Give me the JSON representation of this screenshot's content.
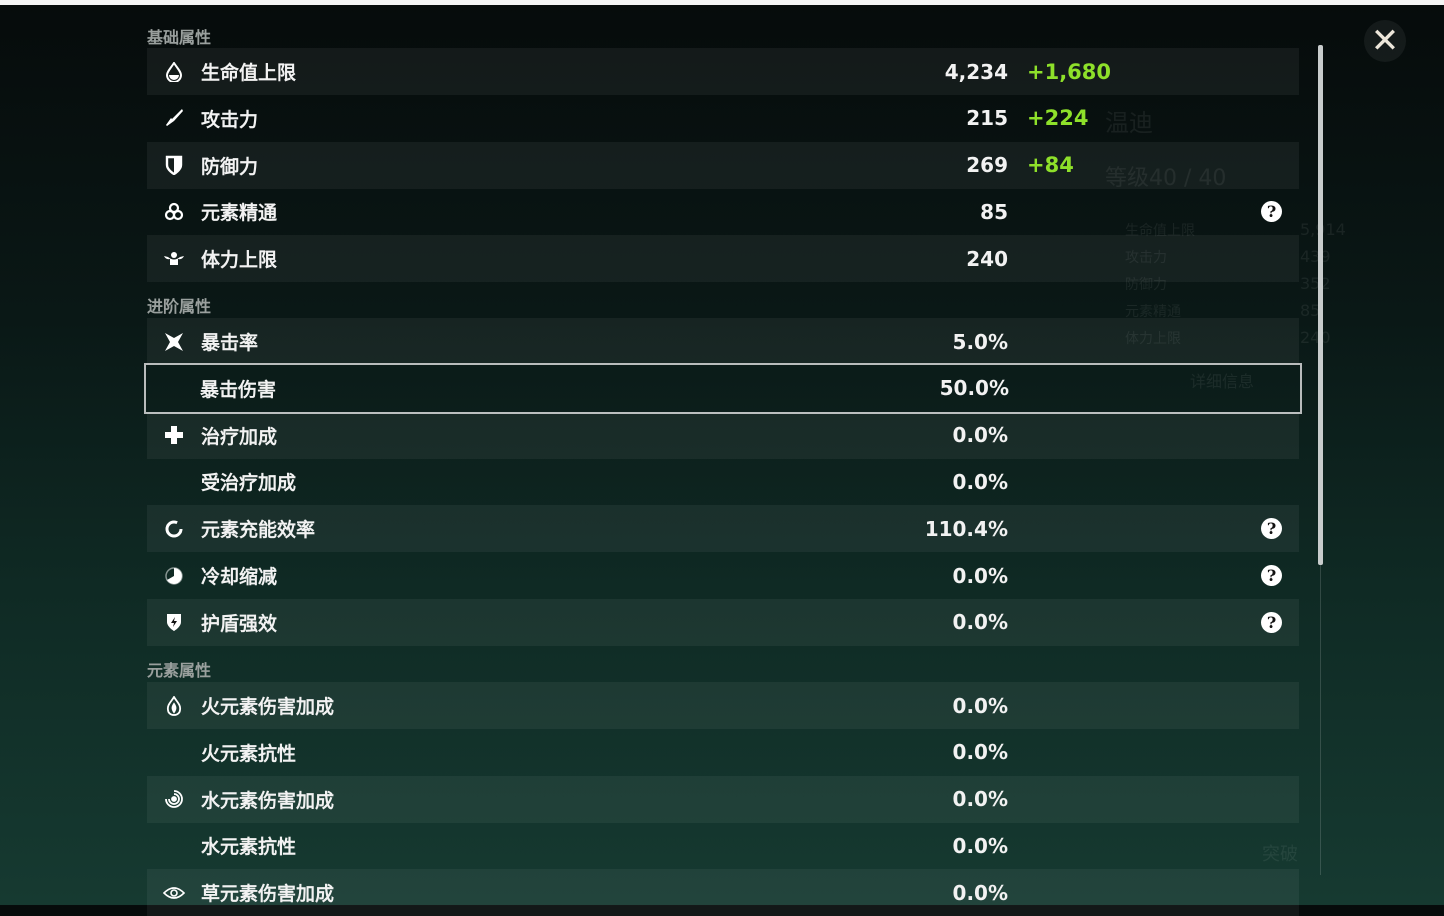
{
  "background": {
    "character_name": "温迪",
    "level": "等级40 / 40",
    "details_button": "详细信息",
    "ascend_button": "突破",
    "side_stats": [
      {
        "label": "生命值上限",
        "value": "5,914"
      },
      {
        "label": "攻击力",
        "value": "439"
      },
      {
        "label": "防御力",
        "value": "352"
      },
      {
        "label": "元素精通",
        "value": "85"
      },
      {
        "label": "体力上限",
        "value": "240"
      }
    ]
  },
  "sections": [
    {
      "title": "基础属性",
      "rows": [
        {
          "icon": "hp-drop-icon",
          "label": "生命值上限",
          "value": "4,234",
          "bonus": "+1,680"
        },
        {
          "icon": "sword-icon",
          "label": "攻击力",
          "value": "215",
          "bonus": "+224"
        },
        {
          "icon": "shield-icon",
          "label": "防御力",
          "value": "269",
          "bonus": "+84"
        },
        {
          "icon": "elemental-mastery-icon",
          "label": "元素精通",
          "value": "85",
          "help": "?"
        },
        {
          "icon": "stamina-icon",
          "label": "体力上限",
          "value": "240"
        }
      ]
    },
    {
      "title": "进阶属性",
      "rows": [
        {
          "icon": "crit-rate-icon",
          "label": "暴击率",
          "value": "5.0%"
        },
        {
          "icon": "",
          "label": "暴击伤害",
          "value": "50.0%",
          "selected": true
        },
        {
          "icon": "healing-cross-icon",
          "label": "治疗加成",
          "value": "0.0%"
        },
        {
          "icon": "",
          "label": "受治疗加成",
          "value": "0.0%"
        },
        {
          "icon": "energy-recharge-icon",
          "label": "元素充能效率",
          "value": "110.4%",
          "help": "?"
        },
        {
          "icon": "cooldown-icon",
          "label": "冷却缩减",
          "value": "0.0%",
          "help": "?"
        },
        {
          "icon": "shield-strength-icon",
          "label": "护盾强效",
          "value": "0.0%",
          "help": "?"
        }
      ]
    },
    {
      "title": "元素属性",
      "rows": [
        {
          "icon": "pyro-icon",
          "label": "火元素伤害加成",
          "value": "0.0%"
        },
        {
          "icon": "",
          "label": "火元素抗性",
          "value": "0.0%"
        },
        {
          "icon": "hydro-icon",
          "label": "水元素伤害加成",
          "value": "0.0%"
        },
        {
          "icon": "",
          "label": "水元素抗性",
          "value": "0.0%"
        },
        {
          "icon": "dendro-icon",
          "label": "草元素伤害加成",
          "value": "0.0%"
        }
      ]
    }
  ],
  "close_label": "✕",
  "colors": {
    "bonus": "#8ee02a",
    "text": "#f2f2f2",
    "section": "#9aa09e"
  }
}
